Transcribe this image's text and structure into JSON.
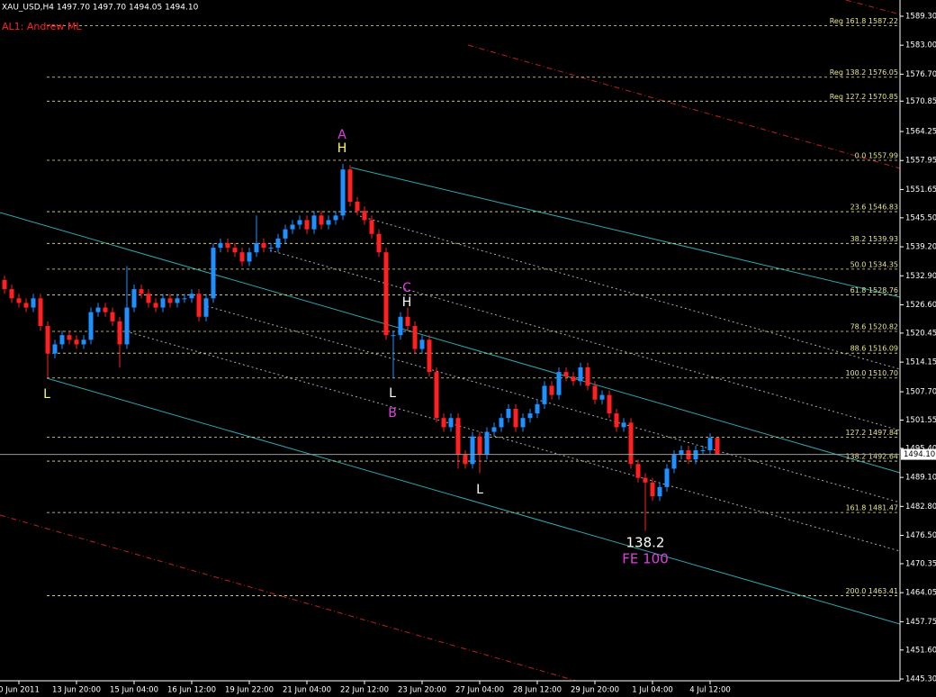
{
  "chart_data": {
    "type": "candlestick",
    "title": "XAU_USD,H4  1497.70 1497.70 1494.05 1494.10",
    "subtitle": "AL1: Andrew ML",
    "up_color": "#1e90ff",
    "down_color": "#ff2020",
    "level_color": "#e6e68a",
    "open": [
      1532,
      1530,
      1528,
      1527,
      1526,
      1528,
      1522,
      1516,
      1518,
      1520,
      1519,
      1518,
      1519,
      1525,
      1526,
      1525,
      1523,
      1518,
      1526,
      1530,
      1529,
      1527,
      1526,
      1528,
      1527,
      1528,
      1528,
      1529,
      1524,
      1528,
      1539,
      1540,
      1539,
      1538,
      1536,
      1538,
      1540,
      1539,
      1539,
      1541,
      1543,
      1544,
      1545,
      1543,
      1546,
      1544,
      1545,
      1546,
      1556,
      1549,
      1547,
      1545,
      1542,
      1538,
      1520,
      1520,
      1524,
      1522,
      1517,
      1519,
      1512,
      1502,
      1500,
      1502,
      1494,
      1492,
      1498,
      1494,
      1499,
      1500,
      1502,
      1504,
      1500,
      1502,
      1503,
      1505,
      1509,
      1507,
      1512,
      1511,
      1510,
      1513,
      1509,
      1506,
      1507,
      1503,
      1500,
      1501,
      1492,
      1489,
      1488,
      1485,
      1487,
      1491,
      1494,
      1495,
      1493,
      1495,
      1495,
      1497.7
    ],
    "high": [
      1533,
      1531,
      1529,
      1528,
      1529,
      1529,
      1523,
      1519,
      1521,
      1521,
      1520,
      1520,
      1526,
      1527,
      1527,
      1526,
      1524,
      1535,
      1531,
      1531,
      1530,
      1528,
      1529,
      1529,
      1529,
      1529,
      1530,
      1530,
      1529,
      1540,
      1541,
      1541,
      1540,
      1539,
      1539,
      1546,
      1541,
      1540,
      1542,
      1544,
      1545,
      1546,
      1546,
      1547,
      1547,
      1546,
      1547,
      1557.2,
      1557,
      1550,
      1548,
      1546,
      1543,
      1539,
      1521,
      1525,
      1526,
      1523,
      1520,
      1520,
      1513,
      1503,
      1503,
      1503,
      1495,
      1499,
      1499,
      1500,
      1501,
      1503,
      1505,
      1505,
      1503,
      1504,
      1506,
      1510,
      1510,
      1513,
      1513,
      1512,
      1514,
      1514,
      1510,
      1508,
      1508,
      1504,
      1502,
      1502,
      1493,
      1490,
      1489,
      1488,
      1492,
      1495,
      1496,
      1496,
      1496,
      1496,
      1498.7,
      1497.7
    ],
    "low": [
      1529,
      1527,
      1526,
      1525,
      1525,
      1521,
      1510.6,
      1515,
      1517,
      1518,
      1517,
      1517,
      1518,
      1524,
      1524,
      1522,
      1513,
      1517,
      1525,
      1528,
      1526,
      1525,
      1525,
      1526,
      1526,
      1527,
      1527,
      1523,
      1523,
      1527,
      1538,
      1538,
      1537,
      1535,
      1535,
      1537,
      1538,
      1538,
      1538,
      1540,
      1542,
      1543,
      1542,
      1542,
      1543,
      1543,
      1544,
      1545,
      1548,
      1546,
      1544,
      1541,
      1537,
      1519,
      1510.6,
      1519,
      1521,
      1516,
      1516,
      1511,
      1501,
      1499,
      1499,
      1491,
      1491,
      1491,
      1490,
      1493,
      1498,
      1499,
      1501,
      1499,
      1499,
      1501,
      1502,
      1504,
      1506,
      1506,
      1510,
      1509,
      1509,
      1508,
      1505,
      1505,
      1502,
      1499,
      1499,
      1491,
      1488,
      1477.5,
      1484,
      1484,
      1486,
      1490,
      1493,
      1492,
      1492,
      1494,
      1494,
      1494.05
    ],
    "close": [
      1530,
      1528,
      1527,
      1526,
      1528,
      1522,
      1516,
      1518,
      1520,
      1519,
      1518,
      1519,
      1525,
      1526,
      1525,
      1523,
      1518,
      1526,
      1530,
      1529,
      1527,
      1526,
      1528,
      1527,
      1528,
      1528,
      1529,
      1524,
      1528,
      1539,
      1540,
      1539,
      1538,
      1536,
      1538,
      1540,
      1539,
      1539,
      1541,
      1543,
      1544,
      1545,
      1543,
      1546,
      1544,
      1545,
      1546,
      1556,
      1549,
      1547,
      1545,
      1542,
      1538,
      1520,
      1520,
      1524,
      1522,
      1517,
      1519,
      1512,
      1502,
      1500,
      1502,
      1494,
      1492,
      1498,
      1494,
      1499,
      1500,
      1502,
      1504,
      1500,
      1502,
      1503,
      1505,
      1509,
      1507,
      1512,
      1511,
      1510,
      1513,
      1509,
      1506,
      1507,
      1503,
      1500,
      1501,
      1492,
      1489,
      1488,
      1485,
      1487,
      1491,
      1494,
      1495,
      1493,
      1495,
      1495,
      1497.7,
      1494.1
    ],
    "xlim": [
      -0.625,
      124.375
    ],
    "xticks": [
      {
        "value": 2,
        "label": "0 Jun 2011"
      },
      {
        "value": 10,
        "label": "13 Jun 20:00"
      },
      {
        "value": 18,
        "label": "15 Jun 04:00"
      },
      {
        "value": 26,
        "label": "16 Jun 12:00"
      },
      {
        "value": 34,
        "label": "19 Jun 22:00"
      },
      {
        "value": 42,
        "label": "21 Jun 04:00"
      },
      {
        "value": 50,
        "label": "22 Jun 12:00"
      },
      {
        "value": 58,
        "label": "23 Jun 20:00"
      },
      {
        "value": 66,
        "label": "27 Jun 04:00"
      },
      {
        "value": 74,
        "label": "28 Jun 12:00"
      },
      {
        "value": 82,
        "label": "29 Jun 20:00"
      },
      {
        "value": 90,
        "label": "1 Jul 04:00"
      },
      {
        "value": 98,
        "label": "4 Jul 12:00"
      }
    ],
    "ylim": [
      1444.91,
      1592.82
    ],
    "yticks": [
      {
        "value": 1589.3,
        "label": "1589.30"
      },
      {
        "value": 1583,
        "label": "1583.00"
      },
      {
        "value": 1576.7,
        "label": "1576.70"
      },
      {
        "value": 1570.85,
        "label": "1570.85"
      },
      {
        "value": 1564.25,
        "label": "1564.25"
      },
      {
        "value": 1557.95,
        "label": "1557.95"
      },
      {
        "value": 1551.65,
        "label": "1551.65"
      },
      {
        "value": 1545.5,
        "label": "1545.50"
      },
      {
        "value": 1539.2,
        "label": "1539.20"
      },
      {
        "value": 1532.9,
        "label": "1532.90"
      },
      {
        "value": 1526.6,
        "label": "1526.60"
      },
      {
        "value": 1520.45,
        "label": "1520.45"
      },
      {
        "value": 1514.15,
        "label": "1514.15"
      },
      {
        "value": 1507.7,
        "label": "1507.70"
      },
      {
        "value": 1501.55,
        "label": "1501.55"
      },
      {
        "value": 1495.4,
        "label": "1495.40"
      },
      {
        "value": 1489.1,
        "label": "1489.10"
      },
      {
        "value": 1482.8,
        "label": "1482.80"
      },
      {
        "value": 1476.5,
        "label": "1476.50"
      },
      {
        "value": 1470.35,
        "label": "1470.35"
      },
      {
        "value": 1464.05,
        "label": "1464.05"
      },
      {
        "value": 1457.75,
        "label": "1457.75"
      },
      {
        "value": 1451.6,
        "label": "1451.60"
      },
      {
        "value": 1445.3,
        "label": "1445.30"
      }
    ],
    "levels": [
      {
        "value": 1587.22,
        "label": "Reg 161.8 1587.22"
      },
      {
        "value": 1576.05,
        "label": "Reg 138.2 1576.05"
      },
      {
        "value": 1570.85,
        "label": "Reg 127.2 1570.85"
      },
      {
        "value": 1557.99,
        "label": "0.0 1557.99"
      },
      {
        "value": 1546.83,
        "label": "23.6 1546.83"
      },
      {
        "value": 1539.93,
        "label": "38.2 1539.93"
      },
      {
        "value": 1534.35,
        "label": "50.0 1534.35"
      },
      {
        "value": 1528.76,
        "label": "61.8 1528.76"
      },
      {
        "value": 1520.82,
        "label": "78.6 1520.82"
      },
      {
        "value": 1516.09,
        "label": "88.6 1516.09"
      },
      {
        "value": 1510.7,
        "label": "100.0 1510.70"
      },
      {
        "value": 1497.84,
        "label": "127.2 1497.84"
      },
      {
        "value": 1492.64,
        "label": "138.2 1492.64"
      },
      {
        "value": 1481.47,
        "label": "161.8 1481.47"
      },
      {
        "value": 1463.41,
        "label": "200.0 1463.41"
      }
    ],
    "current_price": {
      "value": 1494.1,
      "label": "1494.10"
    },
    "annotations": [
      {
        "text": "A",
        "color": "#e040e0"
      },
      {
        "text": "H",
        "color": "#ffff60"
      },
      {
        "text": "L",
        "color": "#ffff60"
      },
      {
        "text": "C",
        "color": "#e040e0"
      },
      {
        "text": "H",
        "color": "#ffffff"
      },
      {
        "text": "L",
        "color": "#ffffff"
      },
      {
        "text": "B",
        "color": "#e040e0"
      },
      {
        "text": "L",
        "color": "#ffffff"
      },
      {
        "text": "138.2",
        "color": "#ffffff"
      },
      {
        "text": "FE 100",
        "color": "#e040e0"
      }
    ]
  }
}
